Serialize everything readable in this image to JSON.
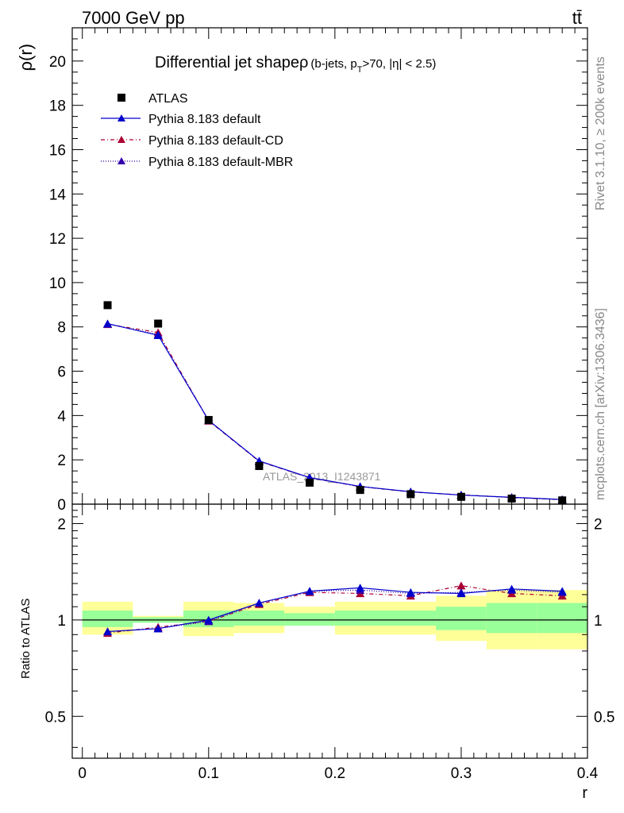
{
  "header": {
    "left_label": "7000 GeV pp",
    "right_label": "tt̄"
  },
  "side_labels": {
    "rivet": "Rivet 3.1.10, ≥ 200k events",
    "mcplots": "mcplots.cern.ch [arXiv:1306.3436]"
  },
  "watermark": "ATLAS_2013_I1243871",
  "chart_data": [
    {
      "type": "scatter",
      "panel": "main",
      "title": "Differential jet shape",
      "title_symbol": "ρ",
      "subtitle_parts": {
        "pre": "(b-jets, p",
        "sub": "T",
        "post": ">70, |η| < 2.5)"
      },
      "ylabel": "ρ(r)",
      "xlabel": "r",
      "xlim": [
        -0.008,
        0.4
      ],
      "ylim": [
        0,
        21.5
      ],
      "xticks": [
        0,
        0.1,
        0.2,
        0.3,
        0.4
      ],
      "xtick_labels": [
        "0",
        "0.1",
        "0.2",
        "0.3",
        "0.4"
      ],
      "yticks": [
        0,
        2,
        4,
        6,
        8,
        10,
        12,
        14,
        16,
        18,
        20
      ],
      "ytick_labels": [
        "0",
        "2",
        "4",
        "6",
        "8",
        "10",
        "12",
        "14",
        "16",
        "18",
        "20"
      ],
      "x": [
        0.02,
        0.06,
        0.1,
        0.14,
        0.18,
        0.22,
        0.26,
        0.3,
        0.34,
        0.38
      ],
      "series": [
        {
          "name": "ATLAS",
          "marker": "square",
          "color": "#000000",
          "values": [
            8.98,
            8.15,
            3.8,
            1.72,
            0.97,
            0.64,
            0.45,
            0.33,
            0.25,
            0.17
          ]
        },
        {
          "name": "Pythia 8.183 default",
          "marker": "triangle",
          "line": "solid",
          "color": "#0000cc",
          "values": [
            8.15,
            7.62,
            3.78,
            1.95,
            1.2,
            0.8,
            0.56,
            0.41,
            0.31,
            0.21
          ]
        },
        {
          "name": "Pythia 8.183 default-CD",
          "marker": "triangle",
          "line": "dashdot",
          "color": "#aa0033",
          "values": [
            8.12,
            7.75,
            3.76,
            1.93,
            1.19,
            0.79,
            0.55,
            0.42,
            0.3,
            0.2
          ]
        },
        {
          "name": "Pythia 8.183 default-MBR",
          "marker": "triangle",
          "line": "dotted",
          "color": "#3300aa",
          "values": [
            8.13,
            7.66,
            3.79,
            1.94,
            1.2,
            0.8,
            0.56,
            0.41,
            0.31,
            0.21
          ]
        }
      ]
    },
    {
      "type": "scatter",
      "panel": "ratio",
      "ylabel": "Ratio to ATLAS",
      "xlabel": "r",
      "xlim": [
        -0.008,
        0.4
      ],
      "ylim": [
        0.37,
        2.3
      ],
      "yscale": "log",
      "yticks": [
        0.5,
        1,
        2
      ],
      "ytick_labels": [
        "0.5",
        "1",
        "2"
      ],
      "x": [
        0.02,
        0.06,
        0.1,
        0.14,
        0.18,
        0.22,
        0.26,
        0.3,
        0.34,
        0.38
      ],
      "bin_edges": [
        0,
        0.04,
        0.08,
        0.12,
        0.16,
        0.2,
        0.24,
        0.28,
        0.32,
        0.36,
        0.4
      ],
      "band_stat": {
        "color": "#99ff99",
        "low": [
          0.95,
          0.98,
          0.95,
          0.96,
          0.96,
          0.96,
          0.96,
          0.93,
          0.91,
          0.91
        ],
        "high": [
          1.07,
          1.02,
          1.07,
          1.07,
          1.05,
          1.07,
          1.07,
          1.1,
          1.13,
          1.13
        ]
      },
      "band_syst": {
        "color": "#ffff99",
        "low": [
          0.9,
          0.99,
          0.89,
          0.91,
          0.98,
          0.9,
          0.9,
          0.86,
          0.81,
          0.81
        ],
        "high": [
          1.14,
          1.03,
          1.14,
          1.13,
          1.1,
          1.14,
          1.14,
          1.19,
          1.24,
          1.24
        ]
      },
      "series": [
        {
          "name": "Pythia 8.183 default",
          "marker": "triangle",
          "line": "solid",
          "color": "#0000cc",
          "values": [
            0.92,
            0.94,
            1.0,
            1.13,
            1.23,
            1.26,
            1.22,
            1.21,
            1.25,
            1.23
          ]
        },
        {
          "name": "Pythia 8.183 default-CD",
          "marker": "triangle",
          "line": "dashdot",
          "color": "#aa0033",
          "values": [
            0.91,
            0.95,
            0.99,
            1.12,
            1.22,
            1.21,
            1.19,
            1.28,
            1.21,
            1.19
          ]
        },
        {
          "name": "Pythia 8.183 default-MBR",
          "marker": "triangle",
          "line": "dotted",
          "color": "#3300aa",
          "values": [
            0.92,
            0.94,
            0.99,
            1.13,
            1.23,
            1.24,
            1.21,
            1.22,
            1.24,
            1.22
          ]
        }
      ]
    }
  ]
}
